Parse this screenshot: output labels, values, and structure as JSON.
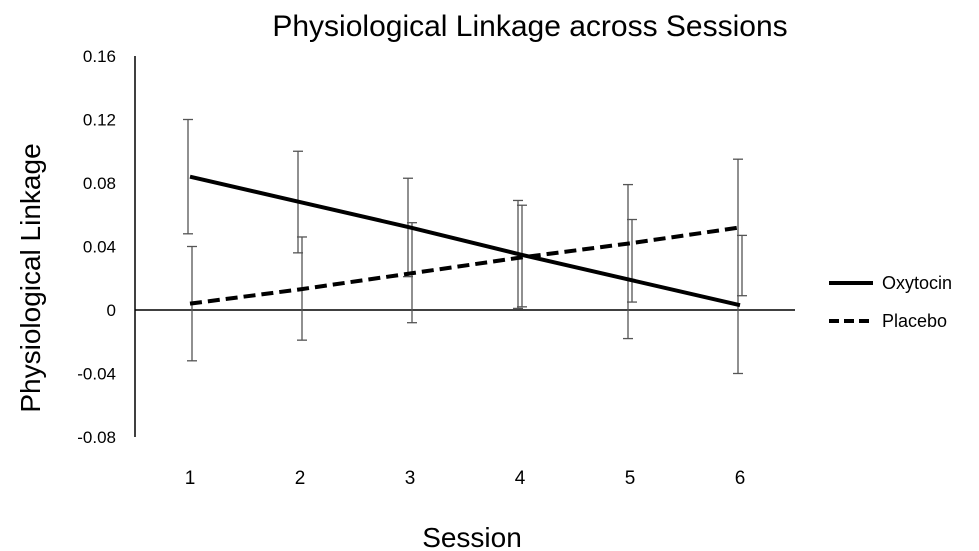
{
  "chart_data": {
    "type": "line",
    "title": "Physiological Linkage across Sessions",
    "xlabel": "Session",
    "ylabel": "Physiological Linkage",
    "x": [
      1,
      2,
      3,
      4,
      5,
      6
    ],
    "ylim": [
      -0.08,
      0.16
    ],
    "yticks": [
      "0.16",
      "0.12",
      "0.08",
      "0.04",
      "0",
      "-0.04",
      "-0.08"
    ],
    "ytick_values": [
      0.16,
      0.12,
      0.08,
      0.04,
      0,
      -0.04,
      -0.08
    ],
    "xticks": [
      "1",
      "2",
      "3",
      "4",
      "5",
      "6"
    ],
    "grid": false,
    "legend_position": "right",
    "series": [
      {
        "name": "Oxytocin",
        "style": "solid",
        "color": "#000000",
        "values": [
          0.084,
          0.068,
          0.052,
          0.035,
          0.019,
          0.003
        ],
        "error_upper": [
          0.12,
          0.1,
          0.083,
          0.069,
          0.079,
          0.095
        ],
        "error_lower": [
          0.048,
          0.036,
          0.021,
          0.001,
          -0.018,
          -0.04
        ]
      },
      {
        "name": "Placebo",
        "style": "dashed",
        "color": "#000000",
        "values": [
          0.004,
          0.013,
          0.023,
          0.033,
          0.042,
          0.052
        ],
        "error_upper": [
          0.04,
          0.046,
          0.055,
          0.066,
          0.057,
          0.047
        ],
        "error_lower": [
          -0.032,
          -0.019,
          -0.008,
          0.002,
          0.005,
          0.009
        ]
      }
    ]
  }
}
